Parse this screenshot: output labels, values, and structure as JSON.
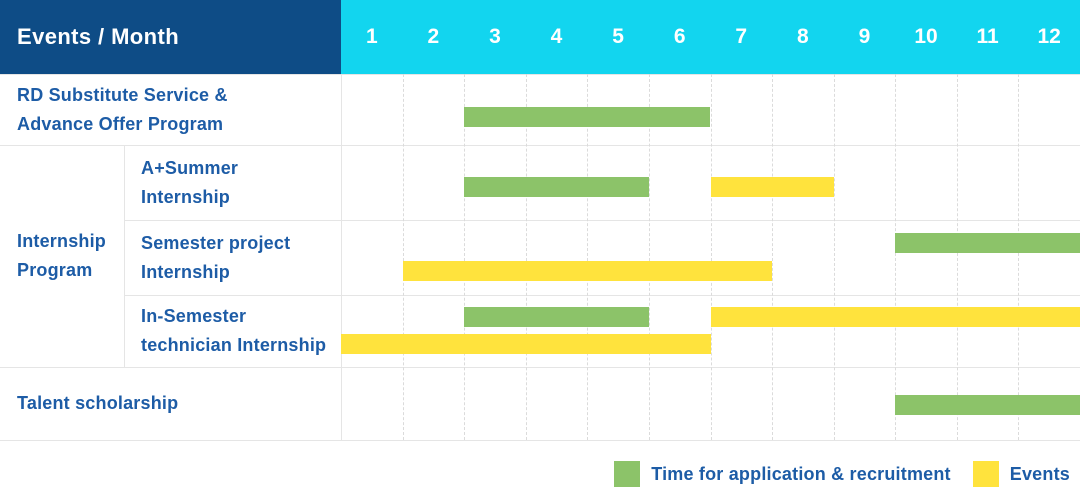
{
  "header": {
    "title": "Events / Month",
    "months": [
      "1",
      "2",
      "3",
      "4",
      "5",
      "6",
      "7",
      "8",
      "9",
      "10",
      "11",
      "12"
    ]
  },
  "legend": {
    "items": [
      {
        "kind": "application",
        "label": "Time for application & recruitment"
      },
      {
        "kind": "event",
        "label": "Events"
      }
    ]
  },
  "colors": {
    "navy_header": "#0E4C86",
    "cyan_header": "#12D5EF",
    "green_bar": "#8CC369",
    "yellow_bar": "#FFE33D",
    "blue_text": "#1D5CA6"
  },
  "chart_data": {
    "type": "gantt",
    "title": "Events / Month",
    "x_unit": "month",
    "x_range": [
      1,
      12
    ],
    "grid": "on",
    "legend_position": "bottom-right",
    "legend": {
      "application": "Time for application & recruitment",
      "event": "Events"
    },
    "group_label_lines": [
      "Internship",
      "Program"
    ],
    "rows": [
      {
        "group": null,
        "label": "RD Substitute Service & Advance Offer Program",
        "label_lines": [
          "RD Substitute Service &",
          "Advance Offer Program"
        ],
        "bars": [
          {
            "kind": "application",
            "from": 3,
            "to": 6,
            "line": "mid"
          }
        ]
      },
      {
        "group": "Internship Program",
        "label": "A+Summer Internship",
        "label_lines": [
          "A+Summer",
          "Internship"
        ],
        "bars": [
          {
            "kind": "application",
            "from": 3,
            "to": 5,
            "line": "mid"
          },
          {
            "kind": "event",
            "from": 7,
            "to": 8,
            "line": "mid"
          }
        ]
      },
      {
        "group": "Internship Program",
        "label": "Semester project Internship",
        "label_lines": [
          "Semester project",
          "Internship"
        ],
        "bars": [
          {
            "kind": "application",
            "from": 10,
            "to": 12,
            "line": "upper"
          },
          {
            "kind": "event",
            "from": 2,
            "to": 7,
            "line": "lower"
          }
        ]
      },
      {
        "group": "Internship Program",
        "label": "In-Semester technician Internship",
        "label_lines": [
          "In-Semester",
          "technician Internship"
        ],
        "bars": [
          {
            "kind": "application",
            "from": 3,
            "to": 5,
            "line": "upper"
          },
          {
            "kind": "event",
            "from": 7,
            "to": 12,
            "line": "upper"
          },
          {
            "kind": "event",
            "from": 1,
            "to": 6,
            "line": "lower"
          }
        ]
      },
      {
        "group": null,
        "label": "Talent scholarship",
        "label_lines": [
          "Talent scholarship"
        ],
        "bars": [
          {
            "kind": "application",
            "from": 10,
            "to": 12,
            "line": "mid"
          }
        ]
      }
    ]
  }
}
